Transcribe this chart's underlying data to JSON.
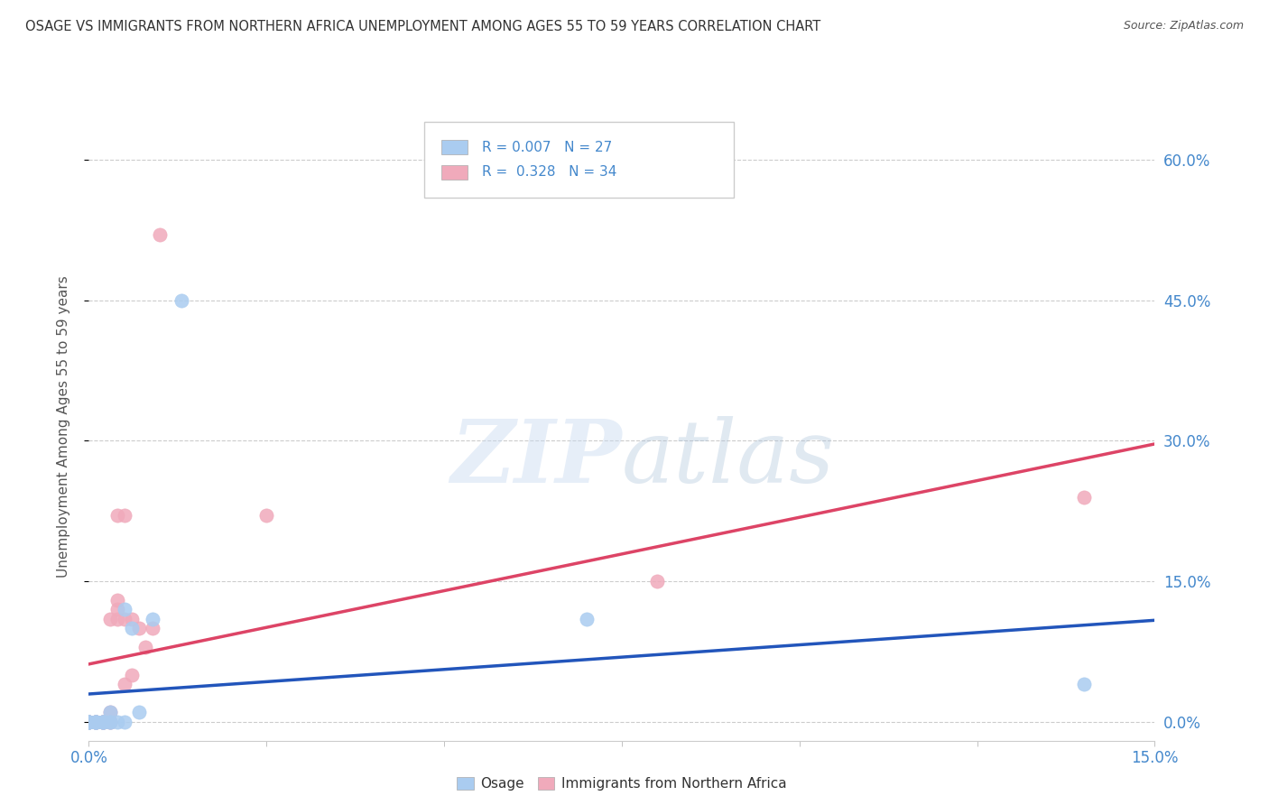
{
  "title": "OSAGE VS IMMIGRANTS FROM NORTHERN AFRICA UNEMPLOYMENT AMONG AGES 55 TO 59 YEARS CORRELATION CHART",
  "source": "Source: ZipAtlas.com",
  "ylabel": "Unemployment Among Ages 55 to 59 years",
  "xlim": [
    0.0,
    0.15
  ],
  "ylim": [
    -0.02,
    0.65
  ],
  "yticks": [
    0.0,
    0.15,
    0.3,
    0.45,
    0.6
  ],
  "ytick_labels": [
    "0.0%",
    "15.0%",
    "30.0%",
    "45.0%",
    "60.0%"
  ],
  "xticks": [
    0.0,
    0.025,
    0.05,
    0.075,
    0.1,
    0.125,
    0.15
  ],
  "background_color": "#ffffff",
  "grid_color": "#cccccc",
  "legend_R1": "0.007",
  "legend_N1": "27",
  "legend_R2": "0.328",
  "legend_N2": "34",
  "osage_color": "#aaccf0",
  "immigrant_color": "#f0aabb",
  "osage_line_color": "#2255bb",
  "immigrant_line_color": "#dd4466",
  "title_color": "#333333",
  "axis_label_color": "#555555",
  "tick_label_color": "#4488cc",
  "osage_x": [
    0.0,
    0.0,
    0.0,
    0.0,
    0.0,
    0.0,
    0.001,
    0.001,
    0.001,
    0.001,
    0.001,
    0.002,
    0.002,
    0.002,
    0.002,
    0.003,
    0.003,
    0.003,
    0.004,
    0.005,
    0.005,
    0.006,
    0.007,
    0.009,
    0.013,
    0.07,
    0.14
  ],
  "osage_y": [
    0.0,
    0.0,
    0.0,
    0.0,
    0.0,
    0.0,
    0.0,
    0.0,
    0.0,
    0.0,
    0.0,
    0.0,
    0.0,
    0.0,
    0.0,
    0.0,
    0.0,
    0.01,
    0.0,
    0.0,
    0.12,
    0.1,
    0.01,
    0.11,
    0.45,
    0.11,
    0.04
  ],
  "immigrant_x": [
    0.0,
    0.0,
    0.0,
    0.0,
    0.0,
    0.001,
    0.001,
    0.001,
    0.001,
    0.002,
    0.002,
    0.002,
    0.002,
    0.002,
    0.003,
    0.003,
    0.003,
    0.003,
    0.004,
    0.004,
    0.004,
    0.004,
    0.005,
    0.005,
    0.005,
    0.006,
    0.006,
    0.007,
    0.008,
    0.009,
    0.01,
    0.025,
    0.08,
    0.14
  ],
  "immigrant_y": [
    0.0,
    0.0,
    0.0,
    0.0,
    0.0,
    0.0,
    0.0,
    0.0,
    0.0,
    0.0,
    0.0,
    0.0,
    0.0,
    0.0,
    0.0,
    0.0,
    0.01,
    0.11,
    0.11,
    0.12,
    0.13,
    0.22,
    0.04,
    0.11,
    0.22,
    0.05,
    0.11,
    0.1,
    0.08,
    0.1,
    0.52,
    0.22,
    0.15,
    0.24
  ]
}
